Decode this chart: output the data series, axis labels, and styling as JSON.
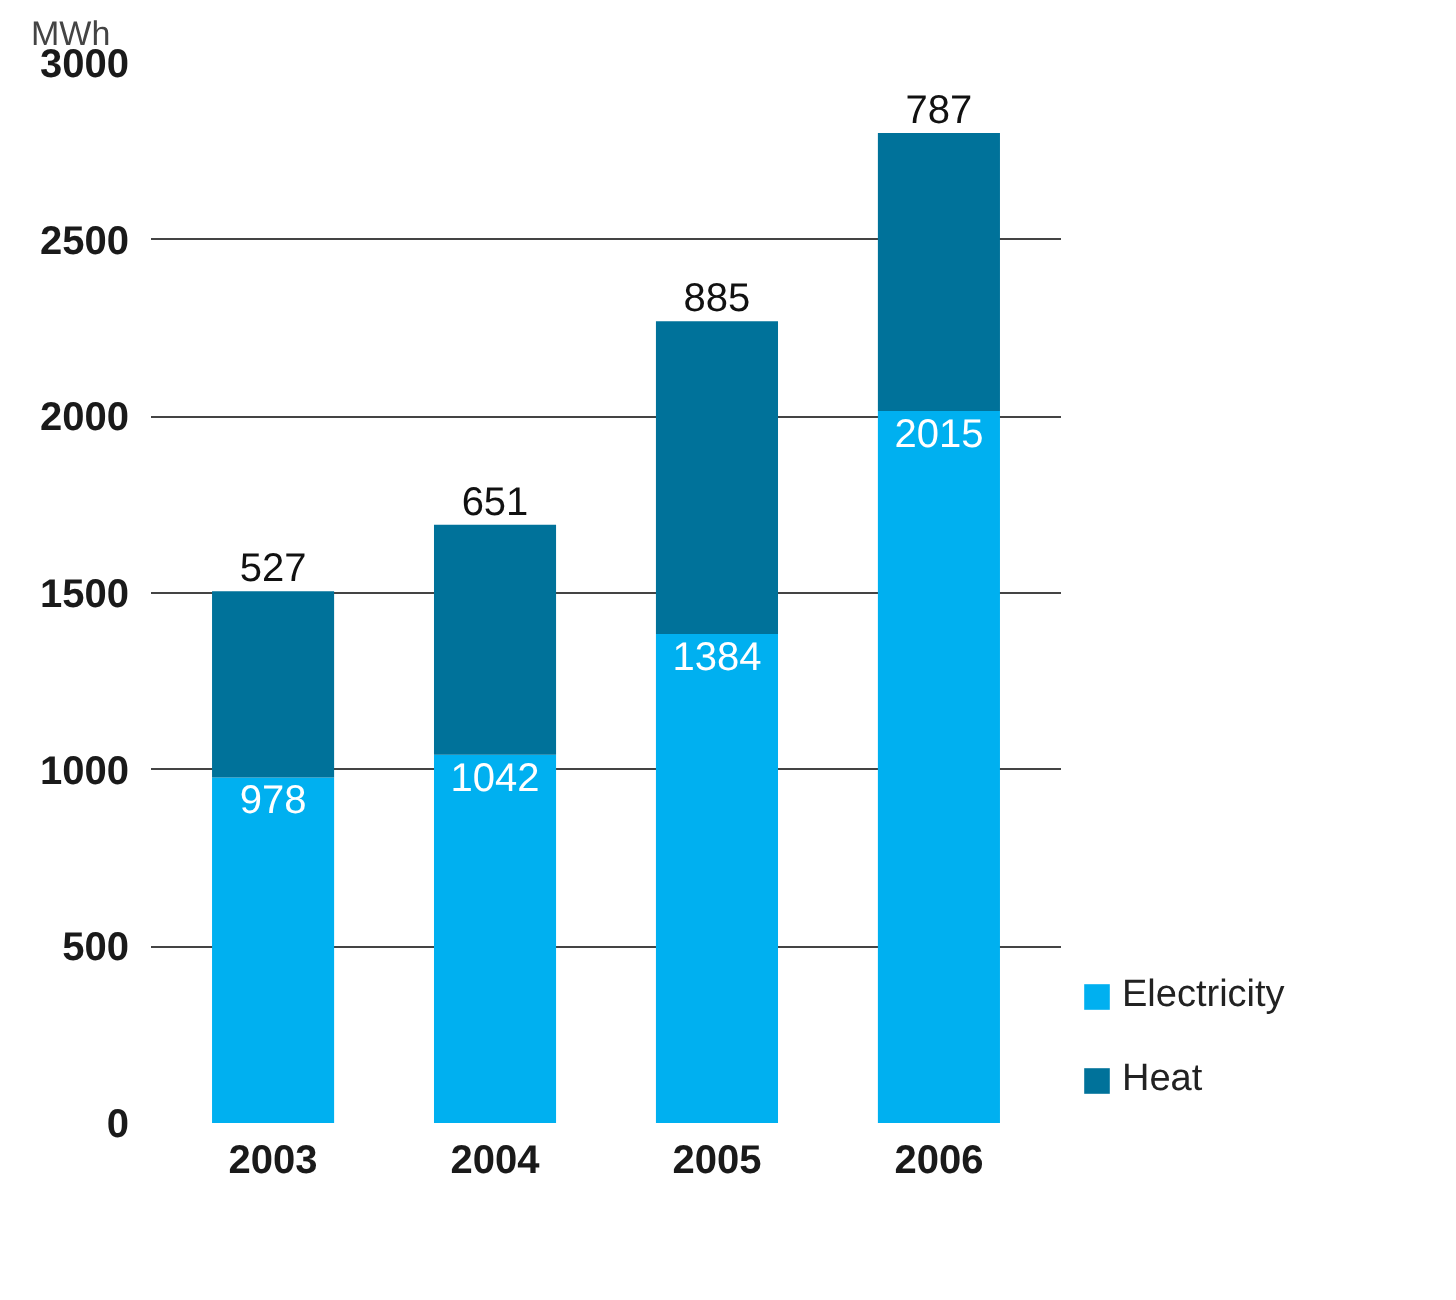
{
  "chart_data": {
    "type": "bar",
    "stacked": true,
    "ylabel": "MWh",
    "categories": [
      "2003",
      "2004",
      "2005",
      "2006"
    ],
    "series": [
      {
        "name": "Electricity",
        "color": "#00b0f0",
        "values": [
          978,
          1042,
          1384,
          2015
        ]
      },
      {
        "name": "Heat",
        "color": "#00729a",
        "values": [
          527,
          651,
          885,
          787
        ]
      }
    ],
    "ylim": [
      0,
      3000
    ],
    "yticks": [
      0,
      500,
      1000,
      1500,
      2000,
      2500,
      3000
    ],
    "grid": "y",
    "legend": "right",
    "data_labels": true
  }
}
